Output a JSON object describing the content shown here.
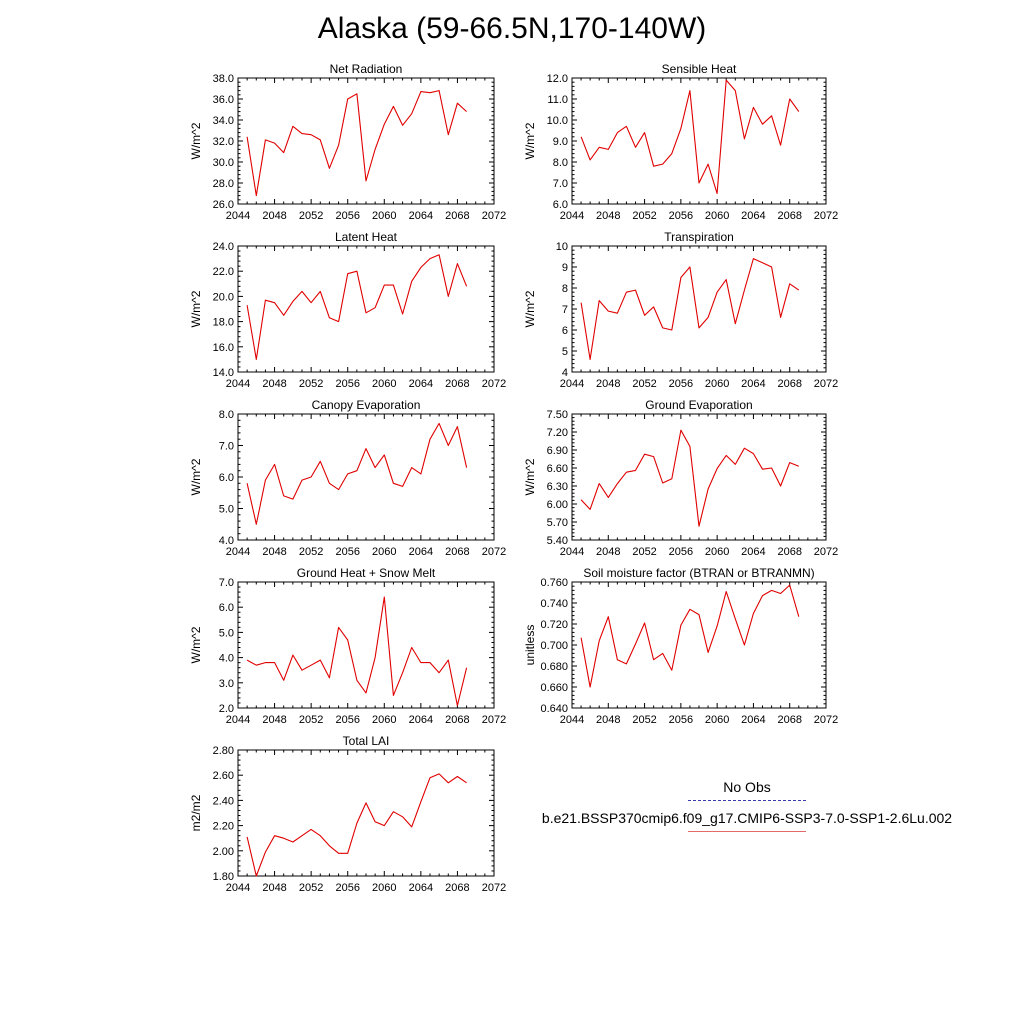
{
  "figure": {
    "title": "Alaska (59-66.5N,170-140W)"
  },
  "chart_data": [
    {
      "type": "line",
      "title": "Net Radiation",
      "ylabel": "W/m^2",
      "xlabel": "",
      "xlim": [
        2044,
        2072
      ],
      "xticks": [
        2044,
        2048,
        2052,
        2056,
        2060,
        2064,
        2068,
        2072
      ],
      "ylim": [
        26.0,
        38.0
      ],
      "yticks": [
        26.0,
        28.0,
        30.0,
        32.0,
        34.0,
        36.0,
        38.0
      ],
      "ydecimals": 1,
      "x": [
        2045,
        2046,
        2047,
        2048,
        2049,
        2050,
        2051,
        2052,
        2053,
        2054,
        2055,
        2056,
        2057,
        2058,
        2059,
        2060,
        2061,
        2062,
        2063,
        2064,
        2065,
        2066,
        2067,
        2068,
        2069
      ],
      "series": [
        {
          "color": "#e00000",
          "values": [
            32.4,
            26.8,
            32.1,
            31.8,
            30.9,
            33.4,
            32.7,
            32.6,
            32.1,
            29.4,
            31.6,
            36.0,
            36.5,
            28.2,
            31.2,
            33.6,
            35.3,
            33.5,
            34.6,
            36.7,
            36.6,
            36.8,
            32.6,
            35.6,
            34.8
          ]
        }
      ]
    },
    {
      "type": "line",
      "title": "Sensible Heat",
      "ylabel": "W/m^2",
      "xlabel": "",
      "xlim": [
        2044,
        2072
      ],
      "xticks": [
        2044,
        2048,
        2052,
        2056,
        2060,
        2064,
        2068,
        2072
      ],
      "ylim": [
        6.0,
        12.0
      ],
      "yticks": [
        6.0,
        7.0,
        8.0,
        9.0,
        10.0,
        11.0,
        12.0
      ],
      "ydecimals": 1,
      "x": [
        2045,
        2046,
        2047,
        2048,
        2049,
        2050,
        2051,
        2052,
        2053,
        2054,
        2055,
        2056,
        2057,
        2058,
        2059,
        2060,
        2061,
        2062,
        2063,
        2064,
        2065,
        2066,
        2067,
        2068,
        2069
      ],
      "series": [
        {
          "color": "#e00000",
          "values": [
            9.2,
            8.1,
            8.7,
            8.6,
            9.4,
            9.7,
            8.7,
            9.4,
            7.8,
            7.9,
            8.4,
            9.6,
            11.4,
            7.0,
            7.9,
            6.5,
            11.9,
            11.4,
            9.1,
            10.6,
            9.8,
            10.2,
            8.8,
            11.0,
            10.4
          ]
        }
      ]
    },
    {
      "type": "line",
      "title": "Latent Heat",
      "ylabel": "W/m^2",
      "xlabel": "",
      "xlim": [
        2044,
        2072
      ],
      "xticks": [
        2044,
        2048,
        2052,
        2056,
        2060,
        2064,
        2068,
        2072
      ],
      "ylim": [
        14.0,
        24.0
      ],
      "yticks": [
        14.0,
        16.0,
        18.0,
        20.0,
        22.0,
        24.0
      ],
      "ydecimals": 1,
      "x": [
        2045,
        2046,
        2047,
        2048,
        2049,
        2050,
        2051,
        2052,
        2053,
        2054,
        2055,
        2056,
        2057,
        2058,
        2059,
        2060,
        2061,
        2062,
        2063,
        2064,
        2065,
        2066,
        2067,
        2068,
        2069
      ],
      "series": [
        {
          "color": "#e00000",
          "values": [
            19.3,
            15.0,
            19.7,
            19.5,
            18.5,
            19.6,
            20.4,
            19.5,
            20.4,
            18.3,
            18.0,
            21.8,
            22.0,
            18.7,
            19.1,
            20.9,
            20.9,
            18.6,
            21.2,
            22.3,
            23.0,
            23.3,
            20.0,
            22.6,
            20.8
          ]
        }
      ]
    },
    {
      "type": "line",
      "title": "Transpiration",
      "ylabel": "W/m^2",
      "xlabel": "",
      "xlim": [
        2044,
        2072
      ],
      "xticks": [
        2044,
        2048,
        2052,
        2056,
        2060,
        2064,
        2068,
        2072
      ],
      "ylim": [
        4,
        10
      ],
      "yticks": [
        4,
        5,
        6,
        7,
        8,
        9,
        10
      ],
      "ydecimals": 0,
      "x": [
        2045,
        2046,
        2047,
        2048,
        2049,
        2050,
        2051,
        2052,
        2053,
        2054,
        2055,
        2056,
        2057,
        2058,
        2059,
        2060,
        2061,
        2062,
        2063,
        2064,
        2065,
        2066,
        2067,
        2068,
        2069
      ],
      "series": [
        {
          "color": "#e00000",
          "values": [
            7.3,
            4.6,
            7.4,
            6.9,
            6.8,
            7.8,
            7.9,
            6.7,
            7.1,
            6.1,
            6.0,
            8.5,
            9.0,
            6.1,
            6.6,
            7.8,
            8.4,
            6.3,
            7.9,
            9.4,
            9.2,
            9.0,
            6.6,
            8.2,
            7.9
          ]
        }
      ]
    },
    {
      "type": "line",
      "title": "Canopy Evaporation",
      "ylabel": "W/m^2",
      "xlabel": "",
      "xlim": [
        2044,
        2072
      ],
      "xticks": [
        2044,
        2048,
        2052,
        2056,
        2060,
        2064,
        2068,
        2072
      ],
      "ylim": [
        4.0,
        8.0
      ],
      "yticks": [
        4.0,
        5.0,
        6.0,
        7.0,
        8.0
      ],
      "ydecimals": 1,
      "x": [
        2045,
        2046,
        2047,
        2048,
        2049,
        2050,
        2051,
        2052,
        2053,
        2054,
        2055,
        2056,
        2057,
        2058,
        2059,
        2060,
        2061,
        2062,
        2063,
        2064,
        2065,
        2066,
        2067,
        2068,
        2069
      ],
      "series": [
        {
          "color": "#e00000",
          "values": [
            5.8,
            4.5,
            5.9,
            6.4,
            5.4,
            5.3,
            5.9,
            6.0,
            6.5,
            5.8,
            5.6,
            6.1,
            6.2,
            6.9,
            6.3,
            6.7,
            5.8,
            5.7,
            6.3,
            6.1,
            7.2,
            7.7,
            7.0,
            7.6,
            6.3
          ]
        }
      ]
    },
    {
      "type": "line",
      "title": "Ground Evaporation",
      "ylabel": "W/m^2",
      "xlabel": "",
      "xlim": [
        2044,
        2072
      ],
      "xticks": [
        2044,
        2048,
        2052,
        2056,
        2060,
        2064,
        2068,
        2072
      ],
      "ylim": [
        5.4,
        7.5
      ],
      "yticks": [
        5.4,
        5.7,
        6.0,
        6.3,
        6.6,
        6.9,
        7.2,
        7.5
      ],
      "ydecimals": 2,
      "x": [
        2045,
        2046,
        2047,
        2048,
        2049,
        2050,
        2051,
        2052,
        2053,
        2054,
        2055,
        2056,
        2057,
        2058,
        2059,
        2060,
        2061,
        2062,
        2063,
        2064,
        2065,
        2066,
        2067,
        2068,
        2069
      ],
      "series": [
        {
          "color": "#e00000",
          "values": [
            6.07,
            5.91,
            6.34,
            6.11,
            6.34,
            6.53,
            6.56,
            6.83,
            6.79,
            6.35,
            6.42,
            7.23,
            6.96,
            5.63,
            6.25,
            6.59,
            6.81,
            6.66,
            6.93,
            6.84,
            6.58,
            6.6,
            6.3,
            6.69,
            6.63
          ]
        }
      ]
    },
    {
      "type": "line",
      "title": "Ground Heat + Snow Melt",
      "ylabel": "W/m^2",
      "xlabel": "",
      "xlim": [
        2044,
        2072
      ],
      "xticks": [
        2044,
        2048,
        2052,
        2056,
        2060,
        2064,
        2068,
        2072
      ],
      "ylim": [
        2.0,
        7.0
      ],
      "yticks": [
        2.0,
        3.0,
        4.0,
        5.0,
        6.0,
        7.0
      ],
      "ydecimals": 1,
      "x": [
        2045,
        2046,
        2047,
        2048,
        2049,
        2050,
        2051,
        2052,
        2053,
        2054,
        2055,
        2056,
        2057,
        2058,
        2059,
        2060,
        2061,
        2062,
        2063,
        2064,
        2065,
        2066,
        2067,
        2068,
        2069
      ],
      "series": [
        {
          "color": "#e00000",
          "values": [
            3.9,
            3.7,
            3.8,
            3.8,
            3.1,
            4.1,
            3.5,
            3.7,
            3.9,
            3.2,
            5.2,
            4.7,
            3.1,
            2.6,
            4.0,
            6.4,
            2.5,
            3.4,
            4.4,
            3.8,
            3.8,
            3.4,
            3.9,
            2.1,
            3.6
          ]
        }
      ]
    },
    {
      "type": "line",
      "title": "Soil moisture factor (BTRAN or BTRANMN)",
      "ylabel": "unitless",
      "xlabel": "",
      "xlim": [
        2044,
        2072
      ],
      "xticks": [
        2044,
        2048,
        2052,
        2056,
        2060,
        2064,
        2068,
        2072
      ],
      "ylim": [
        0.64,
        0.76
      ],
      "yticks": [
        0.64,
        0.66,
        0.68,
        0.7,
        0.72,
        0.74,
        0.76
      ],
      "ydecimals": 3,
      "x": [
        2045,
        2046,
        2047,
        2048,
        2049,
        2050,
        2051,
        2052,
        2053,
        2054,
        2055,
        2056,
        2057,
        2058,
        2059,
        2060,
        2061,
        2062,
        2063,
        2064,
        2065,
        2066,
        2067,
        2068,
        2069
      ],
      "series": [
        {
          "color": "#e00000",
          "values": [
            0.707,
            0.66,
            0.704,
            0.727,
            0.686,
            0.682,
            0.701,
            0.721,
            0.686,
            0.692,
            0.676,
            0.719,
            0.734,
            0.729,
            0.693,
            0.718,
            0.751,
            0.725,
            0.7,
            0.73,
            0.747,
            0.752,
            0.749,
            0.757,
            0.727
          ]
        }
      ]
    },
    {
      "type": "line",
      "title": "Total LAI",
      "ylabel": "m2/m2",
      "xlabel": "",
      "xlim": [
        2044,
        2072
      ],
      "xticks": [
        2044,
        2048,
        2052,
        2056,
        2060,
        2064,
        2068,
        2072
      ],
      "ylim": [
        1.8,
        2.8
      ],
      "yticks": [
        1.8,
        2.0,
        2.2,
        2.4,
        2.6,
        2.8
      ],
      "ydecimals": 2,
      "x": [
        2045,
        2046,
        2047,
        2048,
        2049,
        2050,
        2051,
        2052,
        2053,
        2054,
        2055,
        2056,
        2057,
        2058,
        2059,
        2060,
        2061,
        2062,
        2063,
        2064,
        2065,
        2066,
        2067,
        2068,
        2069
      ],
      "series": [
        {
          "color": "#e00000",
          "values": [
            2.11,
            1.8,
            1.99,
            2.12,
            2.1,
            2.07,
            2.12,
            2.17,
            2.12,
            2.04,
            1.98,
            1.98,
            2.22,
            2.38,
            2.23,
            2.2,
            2.31,
            2.27,
            2.19,
            2.39,
            2.58,
            2.61,
            2.54,
            2.59,
            2.54
          ]
        }
      ]
    }
  ],
  "legend": {
    "items": [
      {
        "label": "No Obs",
        "color": "#3a3ab0",
        "style": "dashed"
      },
      {
        "label": "b.e21.BSSP370cmip6.f09_g17.CMIP6-SSP3-7.0-SSP1-2.6Lu.002",
        "color": "#e36a6a",
        "style": "solid"
      }
    ]
  }
}
